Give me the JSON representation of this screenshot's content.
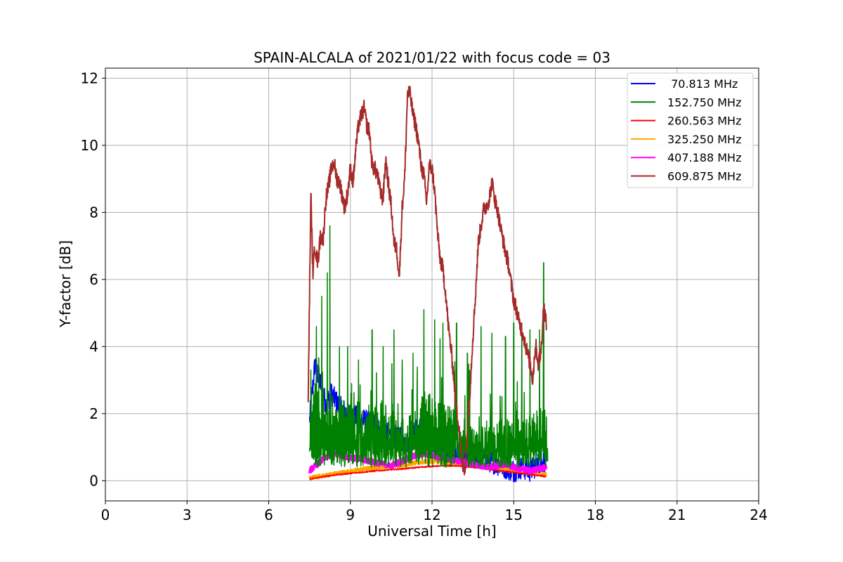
{
  "chart_data": {
    "type": "line",
    "title": "SPAIN-ALCALA of 2021/01/22 with focus code = 03",
    "xlabel": "Universal Time [h]",
    "ylabel": "Y-factor [dB]",
    "xlim": [
      0,
      24
    ],
    "ylim": [
      -0.6,
      12.3
    ],
    "xticks": [
      0,
      3,
      6,
      9,
      12,
      15,
      18,
      21,
      24
    ],
    "yticks": [
      0,
      2,
      4,
      6,
      8,
      10,
      12
    ],
    "grid": true,
    "legend_position": "top-right",
    "series": [
      {
        "name": " 70.813 MHz",
        "color": "#0000ff",
        "x": [
          7.5,
          7.7,
          7.9,
          8.1,
          8.3,
          8.6,
          8.9,
          9.2,
          9.5,
          9.8,
          10.1,
          10.4,
          10.7,
          11.0,
          11.2,
          11.4,
          11.6,
          11.8,
          12.0,
          12.3,
          12.6,
          12.9,
          13.2,
          13.5,
          13.8,
          14.1,
          14.4,
          14.7,
          15.0,
          15.3,
          15.6,
          15.9,
          16.2
        ],
        "y": [
          1.8,
          3.5,
          2.9,
          2.3,
          2.6,
          2.2,
          2.0,
          1.9,
          1.8,
          1.7,
          1.6,
          1.4,
          1.3,
          1.2,
          1.1,
          1.5,
          1.6,
          1.3,
          1.1,
          1.0,
          0.9,
          0.8,
          0.7,
          0.8,
          0.7,
          0.6,
          0.5,
          0.4,
          0.3,
          0.4,
          0.3,
          0.5,
          0.6
        ]
      },
      {
        "name": "152.750 MHz",
        "color": "#008000",
        "x": [
          7.5,
          7.7,
          7.9,
          8.1,
          8.3,
          8.6,
          8.9,
          9.2,
          9.5,
          9.8,
          10.1,
          10.4,
          10.7,
          11.0,
          11.3,
          11.6,
          11.9,
          12.2,
          12.5,
          12.8,
          13.1,
          13.4,
          13.7,
          14.0,
          14.3,
          14.6,
          14.9,
          15.2,
          15.5,
          15.8,
          16.1,
          16.25
        ],
        "y": [
          1.5,
          2.5,
          2.0,
          2.2,
          1.8,
          1.9,
          1.7,
          1.8,
          1.6,
          1.7,
          1.5,
          1.6,
          1.4,
          1.3,
          1.5,
          2.0,
          1.9,
          1.8,
          1.7,
          1.5,
          1.2,
          1.1,
          1.0,
          1.2,
          1.1,
          1.3,
          1.2,
          1.4,
          1.3,
          1.5,
          1.6,
          1.4
        ],
        "peaks": [
          {
            "x": 7.55,
            "y": 3.3
          },
          {
            "x": 7.75,
            "y": 4.6
          },
          {
            "x": 7.95,
            "y": 5.5
          },
          {
            "x": 8.15,
            "y": 6.2
          },
          {
            "x": 8.25,
            "y": 7.6
          },
          {
            "x": 8.6,
            "y": 4.0
          },
          {
            "x": 8.9,
            "y": 4.0
          },
          {
            "x": 9.3,
            "y": 3.6
          },
          {
            "x": 9.8,
            "y": 4.5
          },
          {
            "x": 10.2,
            "y": 4.0
          },
          {
            "x": 10.6,
            "y": 4.5
          },
          {
            "x": 10.9,
            "y": 3.6
          },
          {
            "x": 11.3,
            "y": 3.8
          },
          {
            "x": 11.7,
            "y": 4.4
          },
          {
            "x": 12.1,
            "y": 4.8
          },
          {
            "x": 12.4,
            "y": 4.7
          },
          {
            "x": 12.9,
            "y": 4.7
          },
          {
            "x": 13.3,
            "y": 3.8
          },
          {
            "x": 13.8,
            "y": 4.6
          },
          {
            "x": 14.2,
            "y": 4.4
          },
          {
            "x": 14.7,
            "y": 4.3
          },
          {
            "x": 15.0,
            "y": 4.7
          },
          {
            "x": 15.3,
            "y": 4.7
          },
          {
            "x": 15.6,
            "y": 4.5
          },
          {
            "x": 15.95,
            "y": 4.5
          },
          {
            "x": 16.1,
            "y": 6.5
          }
        ],
        "valley_low": 0.4
      },
      {
        "name": "260.563 MHz",
        "color": "#ff0000",
        "x": [
          7.5,
          8.0,
          8.5,
          9.0,
          9.5,
          10.0,
          10.5,
          11.0,
          11.5,
          12.0,
          12.5,
          13.0,
          13.5,
          14.0,
          14.5,
          15.0,
          15.5,
          16.0,
          16.2
        ],
        "y": [
          0.05,
          0.12,
          0.18,
          0.22,
          0.26,
          0.3,
          0.33,
          0.36,
          0.4,
          0.43,
          0.45,
          0.44,
          0.4,
          0.35,
          0.3,
          0.25,
          0.2,
          0.15,
          0.12
        ]
      },
      {
        "name": "325.250 MHz",
        "color": "#ffa500",
        "x": [
          7.5,
          8.0,
          8.5,
          9.0,
          9.5,
          10.0,
          10.5,
          11.0,
          11.5,
          12.0,
          12.5,
          13.0,
          13.5,
          14.0,
          14.5,
          15.0,
          15.5,
          16.0,
          16.2
        ],
        "y": [
          0.08,
          0.15,
          0.22,
          0.28,
          0.35,
          0.4,
          0.45,
          0.48,
          0.55,
          0.58,
          0.55,
          0.5,
          0.45,
          0.4,
          0.35,
          0.3,
          0.25,
          0.2,
          0.18
        ]
      },
      {
        "name": "407.188 MHz",
        "color": "#ff00ff",
        "x": [
          7.5,
          7.8,
          8.1,
          8.4,
          8.7,
          9.0,
          9.3,
          9.6,
          9.9,
          10.2,
          10.5,
          10.8,
          11.1,
          11.4,
          11.7,
          12.0,
          12.3,
          12.6,
          12.9,
          13.2,
          13.5,
          13.8,
          14.1,
          14.4,
          14.7,
          15.0,
          15.3,
          15.6,
          15.9,
          16.2
        ],
        "y": [
          0.3,
          0.5,
          0.7,
          0.8,
          0.75,
          0.7,
          0.65,
          0.6,
          0.55,
          0.5,
          0.45,
          0.55,
          0.65,
          0.75,
          0.8,
          0.75,
          0.7,
          0.65,
          0.6,
          0.55,
          0.5,
          0.45,
          0.4,
          0.45,
          0.5,
          0.4,
          0.35,
          0.3,
          0.35,
          0.4
        ]
      },
      {
        "name": "609.875 MHz",
        "color": "#a52a2a",
        "x": [
          7.45,
          7.55,
          7.62,
          7.7,
          7.8,
          7.9,
          8.0,
          8.1,
          8.2,
          8.3,
          8.4,
          8.5,
          8.6,
          8.7,
          8.8,
          8.9,
          9.0,
          9.1,
          9.2,
          9.3,
          9.4,
          9.5,
          9.6,
          9.7,
          9.8,
          9.9,
          10.0,
          10.1,
          10.2,
          10.3,
          10.4,
          10.5,
          10.6,
          10.7,
          10.8,
          10.9,
          11.0,
          11.1,
          11.2,
          11.3,
          11.4,
          11.5,
          11.6,
          11.7,
          11.8,
          11.9,
          12.0,
          12.1,
          12.2,
          12.3,
          12.4,
          12.5,
          12.6,
          12.7,
          12.8,
          12.9,
          13.0,
          13.1,
          13.2,
          13.3,
          13.4,
          13.5,
          13.6,
          13.7,
          13.8,
          13.9,
          14.0,
          14.1,
          14.2,
          14.3,
          14.4,
          14.5,
          14.6,
          14.7,
          14.8,
          14.9,
          15.0,
          15.1,
          15.2,
          15.3,
          15.4,
          15.5,
          15.6,
          15.7,
          15.8,
          15.9,
          16.0,
          16.1,
          16.2
        ],
        "y": [
          2.4,
          8.6,
          6.2,
          7.0,
          6.5,
          7.3,
          7.2,
          8.4,
          8.8,
          9.3,
          9.5,
          9.0,
          8.9,
          8.5,
          8.1,
          8.6,
          9.3,
          8.9,
          9.9,
          10.6,
          10.9,
          11.1,
          10.6,
          10.4,
          9.4,
          9.3,
          9.1,
          8.6,
          8.4,
          9.6,
          8.8,
          8.2,
          7.1,
          6.9,
          6.1,
          8.1,
          9.1,
          11.6,
          11.5,
          10.9,
          10.6,
          10.1,
          9.4,
          9.1,
          8.3,
          9.4,
          9.3,
          8.6,
          7.4,
          6.6,
          6.3,
          5.6,
          4.6,
          3.9,
          3.1,
          2.1,
          1.6,
          0.5,
          0.3,
          1.5,
          2.8,
          4.3,
          5.6,
          7.1,
          7.6,
          8.1,
          8.2,
          8.4,
          8.9,
          8.4,
          8.1,
          7.6,
          7.2,
          6.8,
          6.5,
          5.9,
          5.4,
          5.1,
          4.7,
          4.5,
          4.2,
          3.8,
          3.5,
          3.0,
          4.1,
          3.5,
          3.8,
          5.2,
          4.7
        ]
      }
    ]
  }
}
